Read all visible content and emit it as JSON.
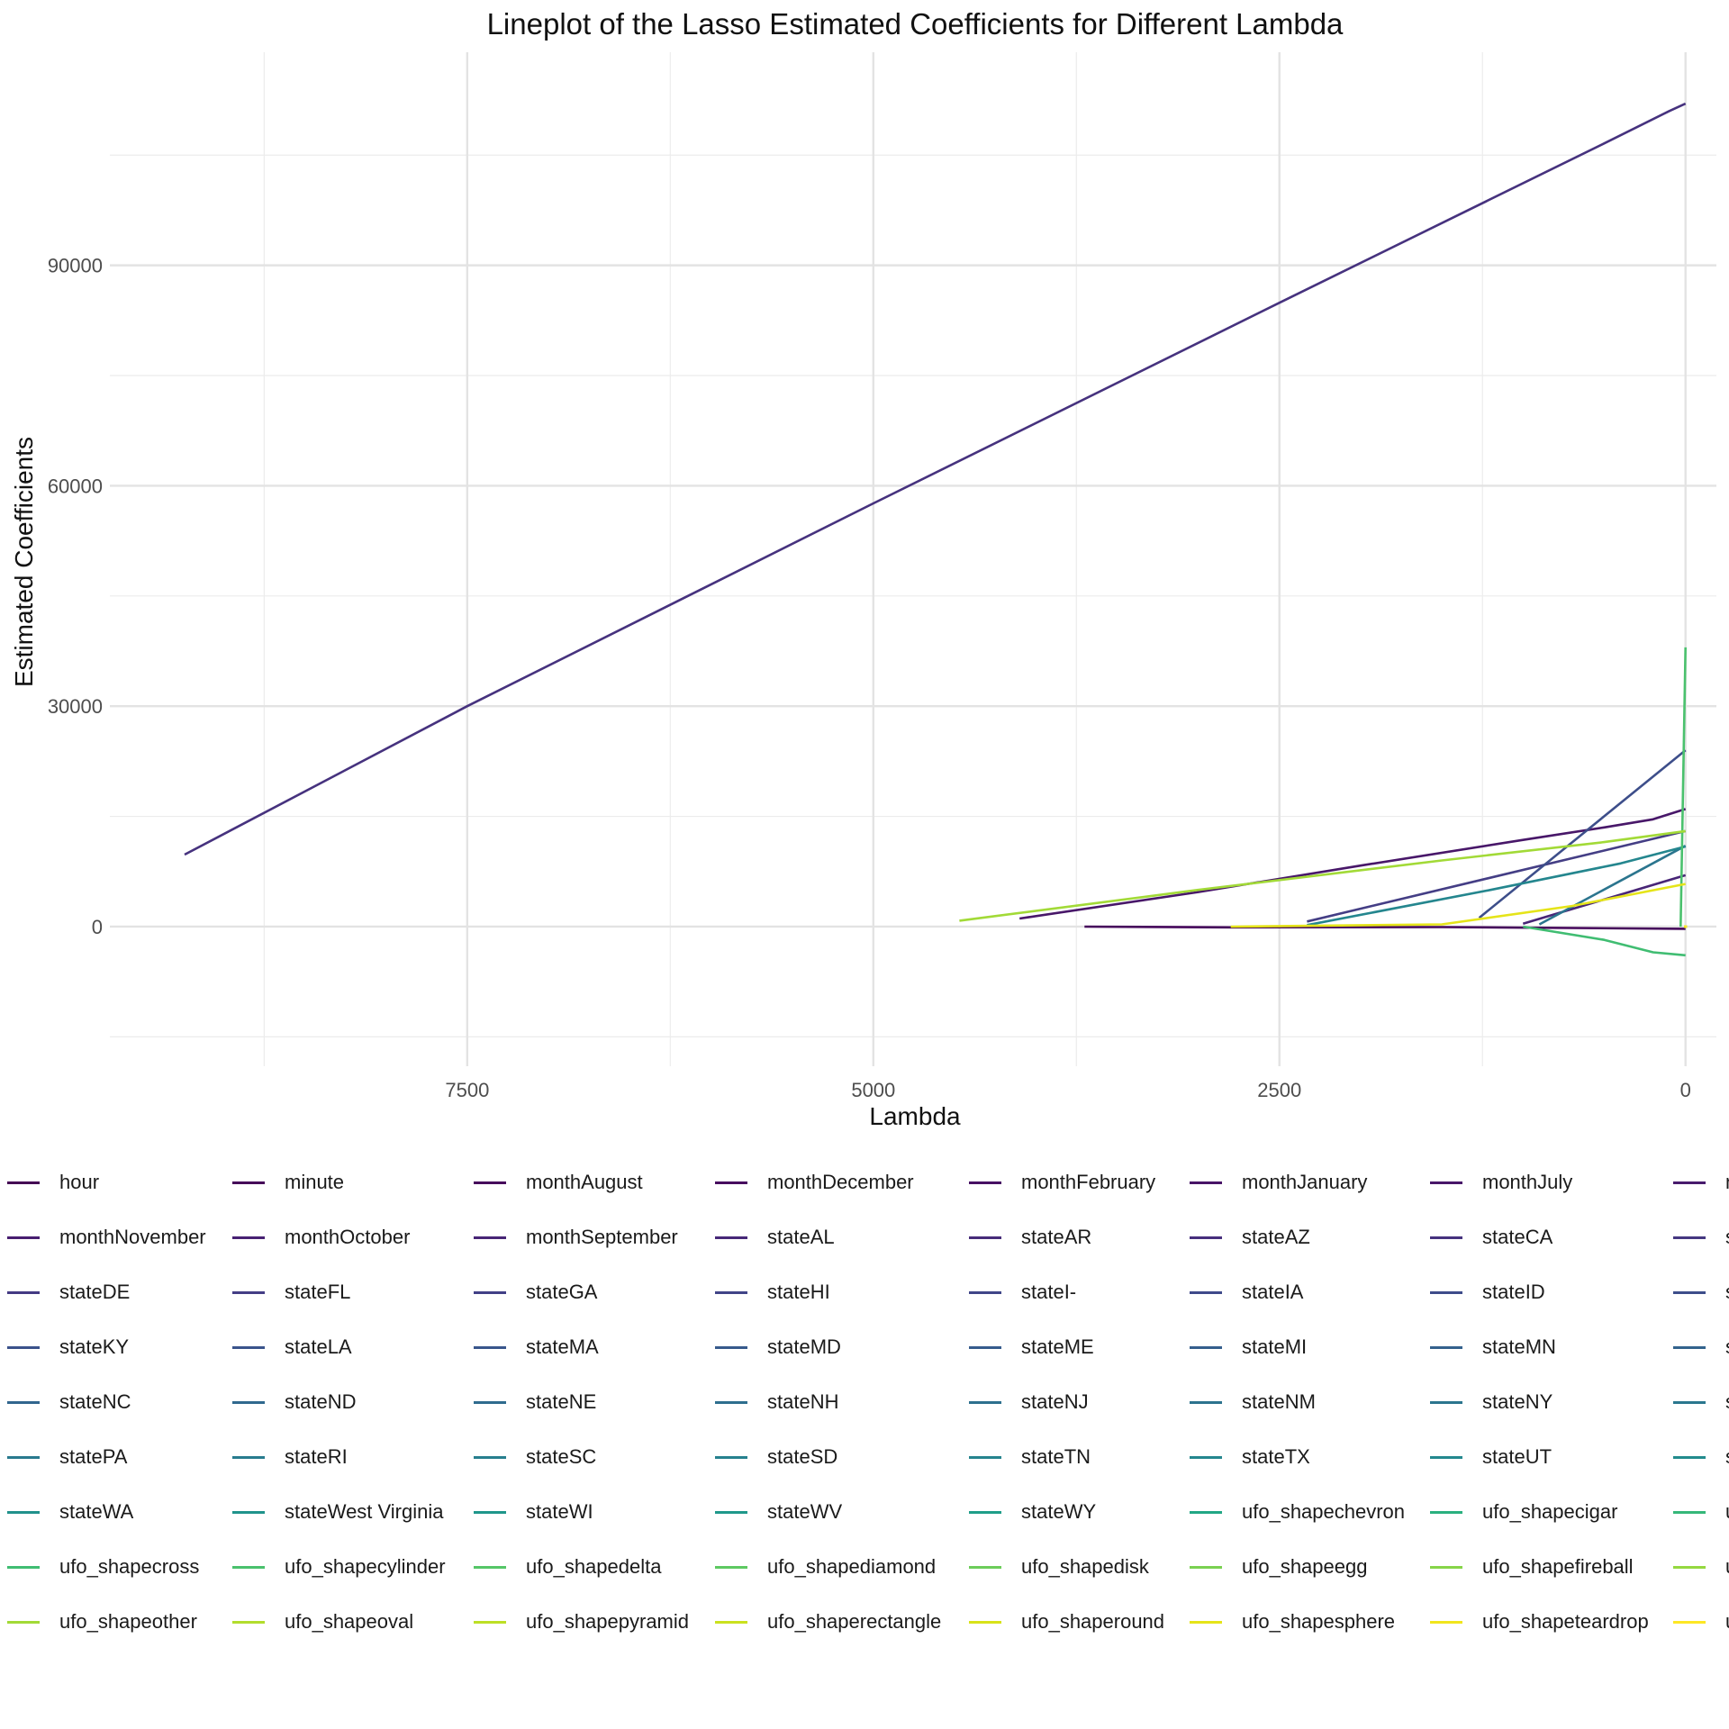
{
  "chart_data": {
    "type": "line",
    "title": "Lineplot of the Lasso Estimated Coefficients for Different Lambda",
    "xlabel": "Lambda",
    "ylabel": "Estimated Coefficients",
    "x_reversed": true,
    "xlim": [
      9700,
      -190
    ],
    "ylim": [
      -19000,
      119000
    ],
    "x_ticks": [
      7500,
      5000,
      2500,
      0
    ],
    "y_ticks": [
      0,
      30000,
      60000,
      90000
    ],
    "grid": true,
    "legend_position": "bottom",
    "series": [
      {
        "name": "hour",
        "color": "#440154",
        "x": [
          0
        ],
        "y": [
          0
        ]
      },
      {
        "name": "minute",
        "color": "#450559",
        "x": [
          0
        ],
        "y": [
          0
        ]
      },
      {
        "name": "monthAugust",
        "color": "#46085c",
        "x": [
          3700,
          2800,
          1500,
          0
        ],
        "y": [
          0,
          -100,
          -60,
          -300
        ]
      },
      {
        "name": "monthDecember",
        "color": "#470c5f",
        "x": [
          0
        ],
        "y": [
          0
        ]
      },
      {
        "name": "monthFebruary",
        "color": "#471063",
        "x": [
          0
        ],
        "y": [
          0
        ]
      },
      {
        "name": "monthJanuary",
        "color": "#481467",
        "x": [
          0
        ],
        "y": [
          0
        ]
      },
      {
        "name": "monthJuly",
        "color": "#481769",
        "x": [
          4100,
          3000,
          2000,
          1000,
          500,
          200,
          0
        ],
        "y": [
          1100,
          4700,
          8300,
          11800,
          13500,
          14600,
          16000
        ]
      },
      {
        "name": "monthJune",
        "color": "#481b6d",
        "x": [
          0
        ],
        "y": [
          0
        ]
      },
      {
        "name": "monthNovember",
        "color": "#481e70",
        "x": [
          0
        ],
        "y": [
          0
        ]
      },
      {
        "name": "monthOctober",
        "color": "#482173",
        "x": [
          0
        ],
        "y": [
          0
        ]
      },
      {
        "name": "monthSeptember",
        "color": "#482576",
        "x": [
          1000,
          0
        ],
        "y": [
          400,
          7000
        ]
      },
      {
        "name": "stateAL",
        "color": "#472878",
        "x": [
          0
        ],
        "y": [
          0
        ]
      },
      {
        "name": "stateAR",
        "color": "#472c7a",
        "x": [
          0
        ],
        "y": [
          0
        ]
      },
      {
        "name": "stateAZ",
        "color": "#472f7d",
        "x": [
          0
        ],
        "y": [
          0
        ]
      },
      {
        "name": "stateCA",
        "color": "#46327e",
        "x": [
          9240,
          7500,
          5000,
          2500,
          500,
          100,
          0
        ],
        "y": [
          9800,
          30000,
          57600,
          84900,
          106600,
          111000,
          112000
        ]
      },
      {
        "name": "stateCO",
        "color": "#453781",
        "x": [
          0
        ],
        "y": [
          0
        ]
      },
      {
        "name": "stateDE",
        "color": "#443a83",
        "x": [
          0
        ],
        "y": [
          0
        ]
      },
      {
        "name": "stateFL",
        "color": "#443e85",
        "x": [
          2330,
          0
        ],
        "y": [
          700,
          13000
        ]
      },
      {
        "name": "stateGA",
        "color": "#424086",
        "x": [
          0
        ],
        "y": [
          0
        ]
      },
      {
        "name": "stateHI",
        "color": "#414487",
        "x": [
          0
        ],
        "y": [
          0
        ]
      },
      {
        "name": "stateI-",
        "color": "#404688",
        "x": [
          0
        ],
        "y": [
          0
        ]
      },
      {
        "name": "stateIA",
        "color": "#3f4a8a",
        "x": [
          0
        ],
        "y": [
          0
        ]
      },
      {
        "name": "stateID",
        "color": "#3e4c8a",
        "x": [
          0
        ],
        "y": [
          0
        ]
      },
      {
        "name": "stateIL",
        "color": "#3d4e8a",
        "x": [
          1270,
          0
        ],
        "y": [
          1200,
          24000
        ]
      },
      {
        "name": "stateKY",
        "color": "#3b528b",
        "x": [
          0
        ],
        "y": [
          0
        ]
      },
      {
        "name": "stateLA",
        "color": "#3a548c",
        "x": [
          0
        ],
        "y": [
          0
        ]
      },
      {
        "name": "stateMA",
        "color": "#39568c",
        "x": [
          0
        ],
        "y": [
          0
        ]
      },
      {
        "name": "stateMD",
        "color": "#375a8c",
        "x": [
          0
        ],
        "y": [
          0
        ]
      },
      {
        "name": "stateME",
        "color": "#365c8d",
        "x": [
          0
        ],
        "y": [
          0
        ]
      },
      {
        "name": "stateMI",
        "color": "#355f8d",
        "x": [
          0
        ],
        "y": [
          0
        ]
      },
      {
        "name": "stateMN",
        "color": "#34618d",
        "x": [
          0
        ],
        "y": [
          0
        ]
      },
      {
        "name": "stateMO",
        "color": "#33638d",
        "x": [
          0
        ],
        "y": [
          0
        ]
      },
      {
        "name": "stateNC",
        "color": "#31668e",
        "x": [
          0
        ],
        "y": [
          0
        ]
      },
      {
        "name": "stateND",
        "color": "#30698e",
        "x": [
          0
        ],
        "y": [
          0
        ]
      },
      {
        "name": "stateNE",
        "color": "#2f6b8e",
        "x": [
          0
        ],
        "y": [
          0
        ]
      },
      {
        "name": "stateNH",
        "color": "#2e6e8e",
        "x": [
          0
        ],
        "y": [
          0
        ]
      },
      {
        "name": "stateNJ",
        "color": "#2d708e",
        "x": [
          0
        ],
        "y": [
          0
        ]
      },
      {
        "name": "stateNM",
        "color": "#2c738e",
        "x": [
          0
        ],
        "y": [
          0
        ]
      },
      {
        "name": "stateNY",
        "color": "#2b758e",
        "x": [
          900,
          0
        ],
        "y": [
          300,
          11000
        ]
      },
      {
        "name": "stateOH",
        "color": "#2a778e",
        "x": [
          0
        ],
        "y": [
          0
        ]
      },
      {
        "name": "statePA",
        "color": "#297a8e",
        "x": [
          0
        ],
        "y": [
          0
        ]
      },
      {
        "name": "stateRI",
        "color": "#287c8e",
        "x": [
          0
        ],
        "y": [
          0
        ]
      },
      {
        "name": "stateSC",
        "color": "#277f8e",
        "x": [
          0
        ],
        "y": [
          0
        ]
      },
      {
        "name": "stateSD",
        "color": "#26818e",
        "x": [
          0
        ],
        "y": [
          0
        ]
      },
      {
        "name": "stateTN",
        "color": "#25848e",
        "x": [
          0
        ],
        "y": [
          0
        ]
      },
      {
        "name": "stateTX",
        "color": "#24868e",
        "x": [
          2330,
          1200,
          400,
          0
        ],
        "y": [
          200,
          5000,
          8600,
          10900
        ]
      },
      {
        "name": "stateUT",
        "color": "#23888e",
        "x": [
          0
        ],
        "y": [
          0
        ]
      },
      {
        "name": "stateVA",
        "color": "#228b8d",
        "x": [
          0
        ],
        "y": [
          0
        ]
      },
      {
        "name": "stateWA",
        "color": "#21918c",
        "x": [
          0
        ],
        "y": [
          0
        ]
      },
      {
        "name": "stateWest Virginia",
        "color": "#20938c",
        "x": [
          0
        ],
        "y": [
          0
        ]
      },
      {
        "name": "stateWI",
        "color": "#1f968b",
        "x": [
          0
        ],
        "y": [
          0
        ]
      },
      {
        "name": "stateWV",
        "color": "#1f988b",
        "x": [
          0
        ],
        "y": [
          0
        ]
      },
      {
        "name": "stateWY",
        "color": "#1f9e89",
        "x": [
          0
        ],
        "y": [
          0
        ]
      },
      {
        "name": "ufo_shapechevron",
        "color": "#22a785",
        "x": [
          0
        ],
        "y": [
          0
        ]
      },
      {
        "name": "ufo_shapecigar",
        "color": "#2ab07f",
        "x": [
          0
        ],
        "y": [
          0
        ]
      },
      {
        "name": "ufo_shapecircle",
        "color": "#35b779",
        "x": [
          0
        ],
        "y": [
          0
        ]
      },
      {
        "name": "ufo_shapecross",
        "color": "#40bd72",
        "x": [
          1000,
          500,
          200,
          0
        ],
        "y": [
          0,
          -1800,
          -3500,
          -3900
        ]
      },
      {
        "name": "ufo_shapecylinder",
        "color": "#4ac16d",
        "x": [
          30,
          0
        ],
        "y": [
          0,
          38000
        ]
      },
      {
        "name": "ufo_shapedelta",
        "color": "#55c667",
        "x": [
          0
        ],
        "y": [
          0
        ]
      },
      {
        "name": "ufo_shapediamond",
        "color": "#5ec962",
        "x": [
          0
        ],
        "y": [
          0
        ]
      },
      {
        "name": "ufo_shapedisk",
        "color": "#6ccd5a",
        "x": [
          0
        ],
        "y": [
          0
        ]
      },
      {
        "name": "ufo_shapeegg",
        "color": "#7ad151",
        "x": [
          0
        ],
        "y": [
          0
        ]
      },
      {
        "name": "ufo_shapefireball",
        "color": "#86d549",
        "x": [
          0
        ],
        "y": [
          0
        ]
      },
      {
        "name": "ufo_shapeflash",
        "color": "#95d840",
        "x": [
          0
        ],
        "y": [
          0
        ]
      },
      {
        "name": "ufo_shapeother",
        "color": "#a2da37",
        "x": [
          4470,
          3000,
          1500,
          500,
          0
        ],
        "y": [
          800,
          5000,
          9000,
          11500,
          13000
        ]
      },
      {
        "name": "ufo_shapeoval",
        "color": "#b2dd2d",
        "x": [
          0
        ],
        "y": [
          0
        ]
      },
      {
        "name": "ufo_shapepyramid",
        "color": "#bddf26",
        "x": [
          0
        ],
        "y": [
          0
        ]
      },
      {
        "name": "ufo_shaperectangle",
        "color": "#cae11f",
        "x": [
          0
        ],
        "y": [
          0
        ]
      },
      {
        "name": "ufo_shaperound",
        "color": "#d8e219",
        "x": [
          0
        ],
        "y": [
          0
        ]
      },
      {
        "name": "ufo_shapesphere",
        "color": "#e5e419",
        "x": [
          2800,
          1500,
          700,
          0
        ],
        "y": [
          0,
          300,
          2800,
          5800
        ]
      },
      {
        "name": "ufo_shapeteardrop",
        "color": "#f1e51d",
        "x": [
          0
        ],
        "y": [
          0
        ]
      },
      {
        "name": "ufo_shapetriangle",
        "color": "#fde725",
        "x": [
          0
        ],
        "y": [
          0
        ]
      }
    ],
    "legend_labels": [
      "hour",
      "minute",
      "monthAugust",
      "monthDecember",
      "monthFebruary",
      "monthJanuary",
      "monthJuly",
      "m",
      "monthNovember",
      "monthOctober",
      "monthSeptember",
      "stateAL",
      "stateAR",
      "stateAZ",
      "stateCA",
      "s",
      "stateDE",
      "stateFL",
      "stateGA",
      "stateHI",
      "stateI-",
      "stateIA",
      "stateID",
      "s",
      "stateKY",
      "stateLA",
      "stateMA",
      "stateMD",
      "stateME",
      "stateMI",
      "stateMN",
      "s",
      "stateNC",
      "stateND",
      "stateNE",
      "stateNH",
      "stateNJ",
      "stateNM",
      "stateNY",
      "s",
      "statePA",
      "stateRI",
      "stateSC",
      "stateSD",
      "stateTN",
      "stateTX",
      "stateUT",
      "s",
      "stateWA",
      "stateWest Virginia",
      "stateWI",
      "stateWV",
      "stateWY",
      "ufo_shapechevron",
      "ufo_shapecigar",
      "u",
      "ufo_shapecross",
      "ufo_shapecylinder",
      "ufo_shapedelta",
      "ufo_shapediamond",
      "ufo_shapedisk",
      "ufo_shapeegg",
      "ufo_shapefireball",
      "u",
      "ufo_shapeother",
      "ufo_shapeoval",
      "ufo_shapepyramid",
      "ufo_shaperectangle",
      "ufo_shaperound",
      "ufo_shapesphere",
      "ufo_shapeteardrop",
      "u"
    ],
    "legend_colors": [
      "#440154",
      "#450559",
      "#46085c",
      "#470c5f",
      "#471063",
      "#481467",
      "#481769",
      "#481b6d",
      "#481e70",
      "#482173",
      "#482576",
      "#472878",
      "#472c7a",
      "#472f7d",
      "#46327e",
      "#453781",
      "#443a83",
      "#443e85",
      "#424086",
      "#414487",
      "#404688",
      "#3f4a8a",
      "#3e4c8a",
      "#3d4e8a",
      "#3b528b",
      "#3a548c",
      "#39568c",
      "#375a8c",
      "#365c8d",
      "#355f8d",
      "#34618d",
      "#33638d",
      "#31668e",
      "#30698e",
      "#2f6b8e",
      "#2e6e8e",
      "#2d708e",
      "#2c738e",
      "#2b758e",
      "#2a778e",
      "#297a8e",
      "#287c8e",
      "#277f8e",
      "#26818e",
      "#25848e",
      "#24868e",
      "#23888e",
      "#228b8d",
      "#21918c",
      "#20938c",
      "#1f968b",
      "#1f988b",
      "#1f9e89",
      "#22a785",
      "#2ab07f",
      "#35b779",
      "#40bd72",
      "#4ac16d",
      "#55c667",
      "#5ec962",
      "#6ccd5a",
      "#7ad151",
      "#86d549",
      "#95d840",
      "#a2da37",
      "#b2dd2d",
      "#bddf26",
      "#cae11f",
      "#d8e219",
      "#e5e419",
      "#f1e51d",
      "#fde725"
    ]
  }
}
